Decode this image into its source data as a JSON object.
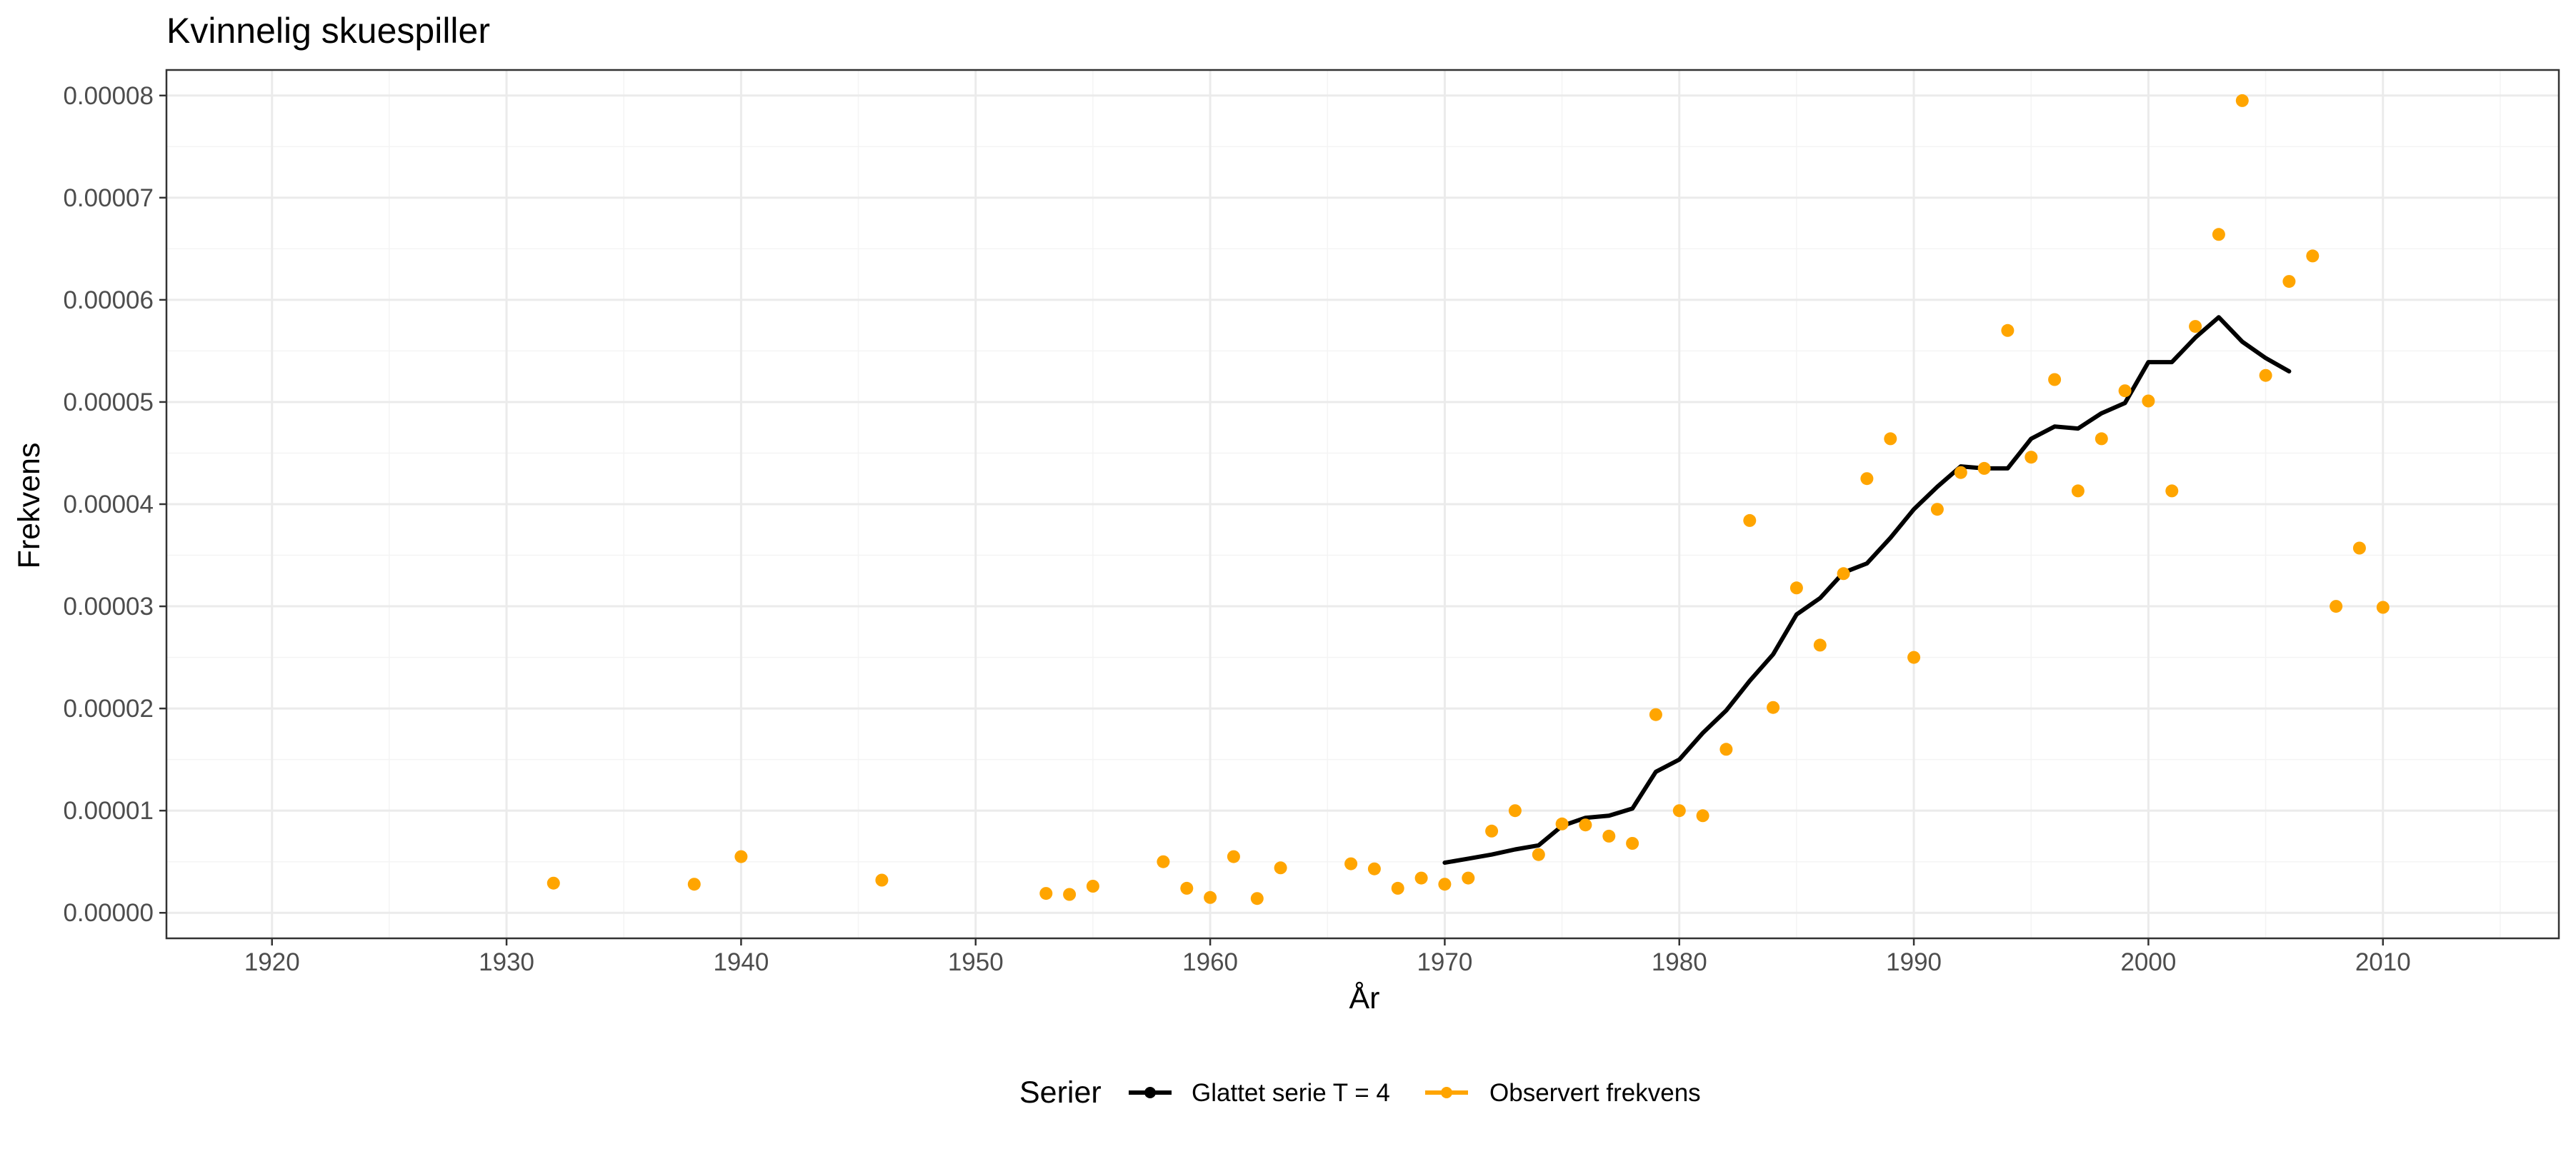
{
  "chart_data": {
    "type": "line",
    "title": "Kvinnelig skuespiller",
    "xlabel": "År",
    "ylabel": "Frekvens",
    "xlim": [
      1915.5,
      2017.5
    ],
    "ylim": [
      -2.5e-06,
      8.25e-05
    ],
    "x_ticks": [
      1920,
      1930,
      1940,
      1950,
      1960,
      1970,
      1980,
      1990,
      2000,
      2010
    ],
    "y_ticks": [
      0,
      1e-05,
      2e-05,
      3e-05,
      4e-05,
      5e-05,
      6e-05,
      7e-05,
      8e-05
    ],
    "y_tick_labels": [
      "0.00000",
      "0.00001",
      "0.00002",
      "0.00003",
      "0.00004",
      "0.00005",
      "0.00006",
      "0.00007",
      "0.00008"
    ],
    "grid": true,
    "legend_position": "bottom",
    "legend_title": "Serier",
    "series": [
      {
        "name": "Glattet serie T  = 4",
        "kind": "line",
        "color": "#000000",
        "x": [
          1970,
          1971,
          1972,
          1973,
          1974,
          1975,
          1976,
          1977,
          1978,
          1979,
          1980,
          1981,
          1982,
          1983,
          1984,
          1985,
          1986,
          1987,
          1988,
          1989,
          1990,
          1991,
          1992,
          1993,
          1994,
          1995,
          1996,
          1997,
          1998,
          1999,
          2000,
          2001,
          2002,
          2003,
          2004,
          2005,
          2006
        ],
        "y": [
          4.9e-06,
          5.3e-06,
          5.7e-06,
          6.2e-06,
          6.6e-06,
          8.5e-06,
          9.3e-06,
          9.5e-06,
          1.02e-05,
          1.38e-05,
          1.5e-05,
          1.76e-05,
          1.98e-05,
          2.27e-05,
          2.53e-05,
          2.92e-05,
          3.08e-05,
          3.33e-05,
          3.42e-05,
          3.67e-05,
          3.95e-05,
          4.17e-05,
          4.37e-05,
          4.35e-05,
          4.35e-05,
          4.64e-05,
          4.76e-05,
          4.74e-05,
          4.89e-05,
          4.99e-05,
          5.39e-05,
          5.39e-05,
          5.63e-05,
          5.83e-05,
          5.59e-05,
          5.43e-05,
          5.3e-05
        ]
      },
      {
        "name": "Observert frekvens",
        "kind": "points",
        "color": "#FFA500",
        "x": [
          1932,
          1938,
          1940,
          1946,
          1953,
          1954,
          1955,
          1958,
          1959,
          1960,
          1961,
          1962,
          1963,
          1966,
          1967,
          1968,
          1969,
          1970,
          1971,
          1972,
          1973,
          1974,
          1975,
          1976,
          1977,
          1978,
          1979,
          1980,
          1981,
          1982,
          1983,
          1984,
          1985,
          1986,
          1987,
          1988,
          1989,
          1990,
          1991,
          1992,
          1993,
          1994,
          1995,
          1996,
          1997,
          1998,
          1999,
          2000,
          2001,
          2002,
          2003,
          2004,
          2006,
          2007,
          2005,
          2008,
          2009,
          2010
        ],
        "y": [
          2.9e-06,
          2.8e-06,
          5.5e-06,
          3.2e-06,
          1.9e-06,
          1.8e-06,
          2.6e-06,
          5e-06,
          2.4e-06,
          1.5e-06,
          5.5e-06,
          1.4e-06,
          4.4e-06,
          4.8e-06,
          4.3e-06,
          2.4e-06,
          3.4e-06,
          2.8e-06,
          3.4e-06,
          8e-06,
          1e-05,
          5.7e-06,
          8.7e-06,
          8.6e-06,
          7.5e-06,
          6.8e-06,
          1.94e-05,
          1e-05,
          9.5e-06,
          1.6e-05,
          3.84e-05,
          2.01e-05,
          3.18e-05,
          2.62e-05,
          3.32e-05,
          4.25e-05,
          4.64e-05,
          2.5e-05,
          3.95e-05,
          4.31e-05,
          4.35e-05,
          5.7e-05,
          4.46e-05,
          5.22e-05,
          4.13e-05,
          4.64e-05,
          5.11e-05,
          5.01e-05,
          4.13e-05,
          5.74e-05,
          6.64e-05,
          7.95e-05,
          6.18e-05,
          6.43e-05,
          5.26e-05,
          3e-05,
          3.57e-05,
          2.99e-05
        ]
      }
    ]
  }
}
